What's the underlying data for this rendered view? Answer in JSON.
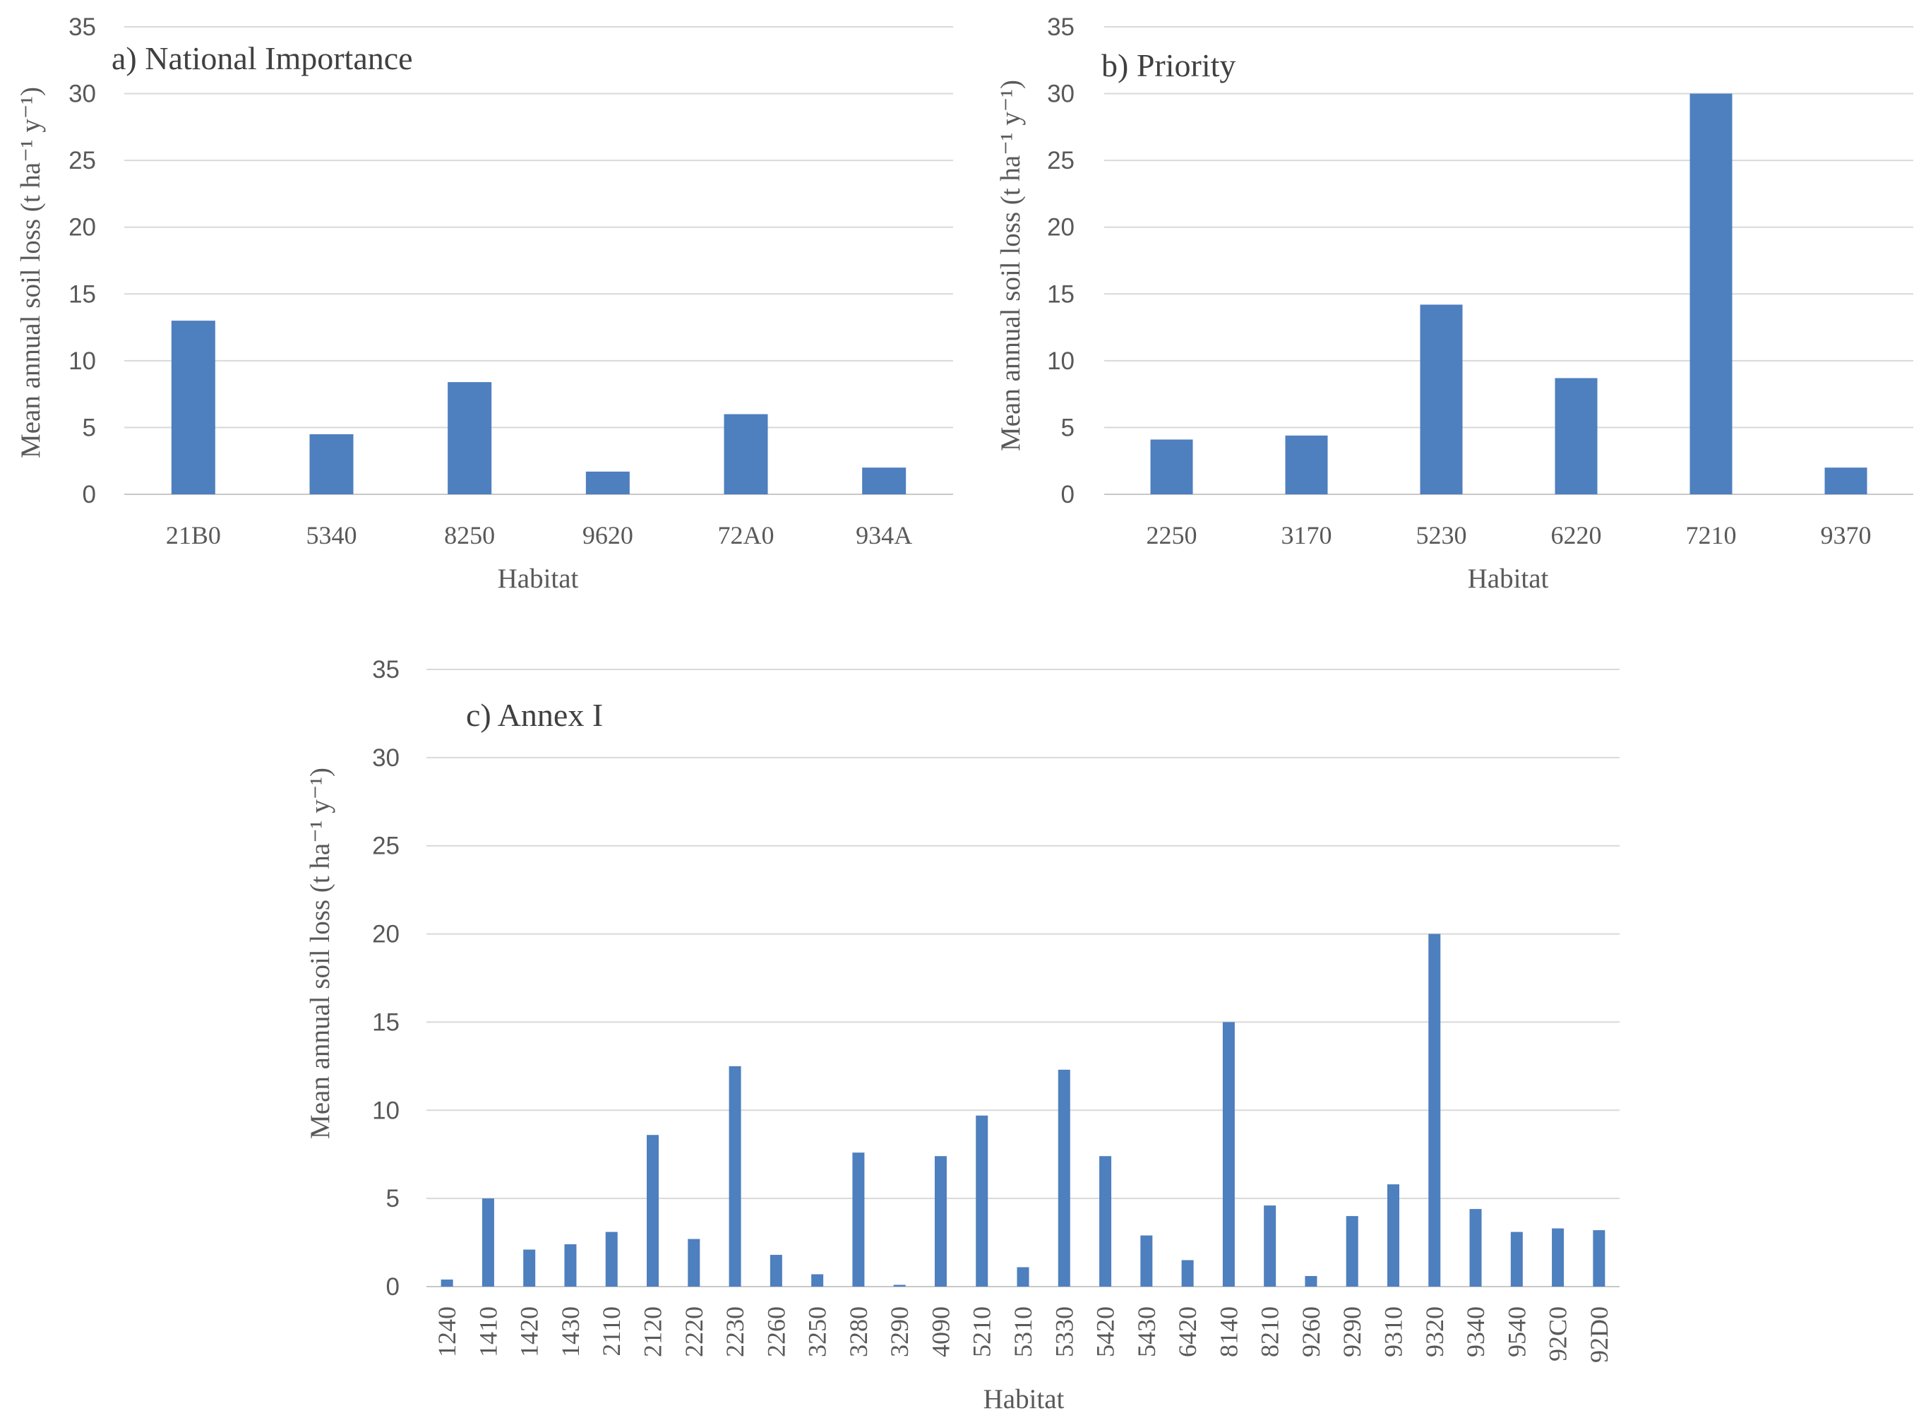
{
  "figure": {
    "bar_color": "#4e7fbe",
    "grid_color": "#d9d9d9",
    "text_color": "#595959"
  },
  "chart_data": [
    {
      "id": "a",
      "type": "bar",
      "title": "a) National Importance",
      "xlabel": "Habitat",
      "ylabel": "Mean annual soil loss (t ha⁻¹ y⁻¹)",
      "ylim": [
        0,
        35
      ],
      "yticks": [
        0,
        5,
        10,
        15,
        20,
        25,
        30,
        35
      ],
      "grid": true,
      "categories": [
        "21B0",
        "5340",
        "8250",
        "9620",
        "72A0",
        "934A"
      ],
      "values": [
        13.0,
        4.5,
        8.4,
        1.7,
        6.0,
        2.0
      ]
    },
    {
      "id": "b",
      "type": "bar",
      "title": "b) Priority",
      "xlabel": "Habitat",
      "ylabel": "Mean annual soil loss (t ha⁻¹ y⁻¹)",
      "ylim": [
        0,
        35
      ],
      "yticks": [
        0,
        5,
        10,
        15,
        20,
        25,
        30,
        35
      ],
      "grid": true,
      "categories": [
        "2250",
        "3170",
        "5230",
        "6220",
        "7210",
        "9370"
      ],
      "values": [
        4.1,
        4.4,
        14.2,
        8.7,
        30.0,
        2.0
      ]
    },
    {
      "id": "c",
      "type": "bar",
      "title": "c) Annex I",
      "xlabel": "Habitat",
      "ylabel": "Mean annual soil loss (t ha⁻¹ y⁻¹)",
      "ylim": [
        0,
        35
      ],
      "yticks": [
        0,
        5,
        10,
        15,
        20,
        25,
        30,
        35
      ],
      "grid": true,
      "categories": [
        "1240",
        "1410",
        "1420",
        "1430",
        "2110",
        "2120",
        "2220",
        "2230",
        "2260",
        "3250",
        "3280",
        "3290",
        "4090",
        "5210",
        "5310",
        "5330",
        "5420",
        "5430",
        "6420",
        "8140",
        "8210",
        "9260",
        "9290",
        "9310",
        "9320",
        "9340",
        "9540",
        "92C0",
        "92D0"
      ],
      "values": [
        0.4,
        5.0,
        2.1,
        2.4,
        3.1,
        8.6,
        2.7,
        12.5,
        1.8,
        0.7,
        7.6,
        0.1,
        7.4,
        9.7,
        1.1,
        12.3,
        7.4,
        2.9,
        1.5,
        15.0,
        4.6,
        0.6,
        4.0,
        5.8,
        20.0,
        4.4,
        3.1,
        3.3,
        3.2
      ]
    }
  ]
}
